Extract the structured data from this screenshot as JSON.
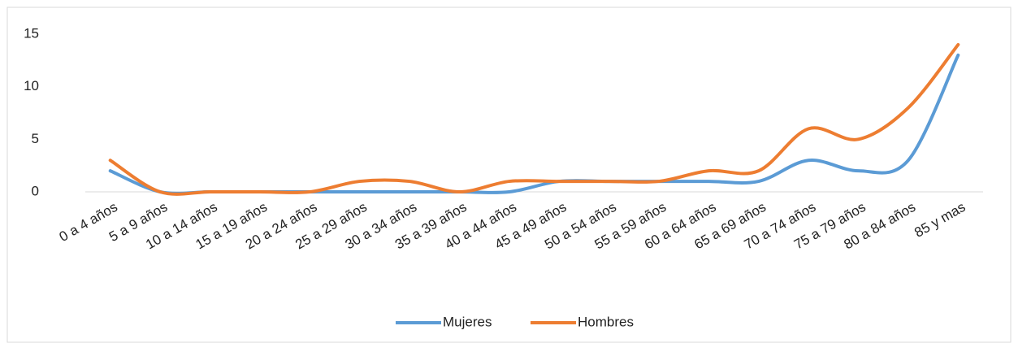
{
  "chart_data": {
    "type": "line",
    "categories": [
      "0 a 4 años",
      "5 a 9 años",
      "10 a 14 años",
      "15 a 19 años",
      "20 a 24 años",
      "25 a 29 años",
      "30 a 34 años",
      "35 a 39 años",
      "40 a 44 años",
      "45 a 49 años",
      "50 a 54 años",
      "55 a 59 años",
      "60 a 64 años",
      "65 a 69 años",
      "70 a 74 años",
      "75 a 79 años",
      "80 a 84 años",
      "85 y mas"
    ],
    "series": [
      {
        "name": "Mujeres",
        "color": "#5b9bd5",
        "values": [
          2,
          0,
          0,
          0,
          0,
          0,
          0,
          0,
          0,
          1,
          1,
          1,
          1,
          1,
          3,
          2,
          3,
          13
        ]
      },
      {
        "name": "Hombres",
        "color": "#ed7d31",
        "values": [
          3,
          0,
          0,
          0,
          0,
          1,
          1,
          0,
          1,
          1,
          1,
          1,
          2,
          2,
          6,
          5,
          8,
          14
        ]
      }
    ],
    "ylim": [
      0,
      15
    ],
    "yticks": [
      0,
      5,
      10,
      15
    ],
    "smooth": true,
    "grid": false,
    "legend": "bottom"
  }
}
